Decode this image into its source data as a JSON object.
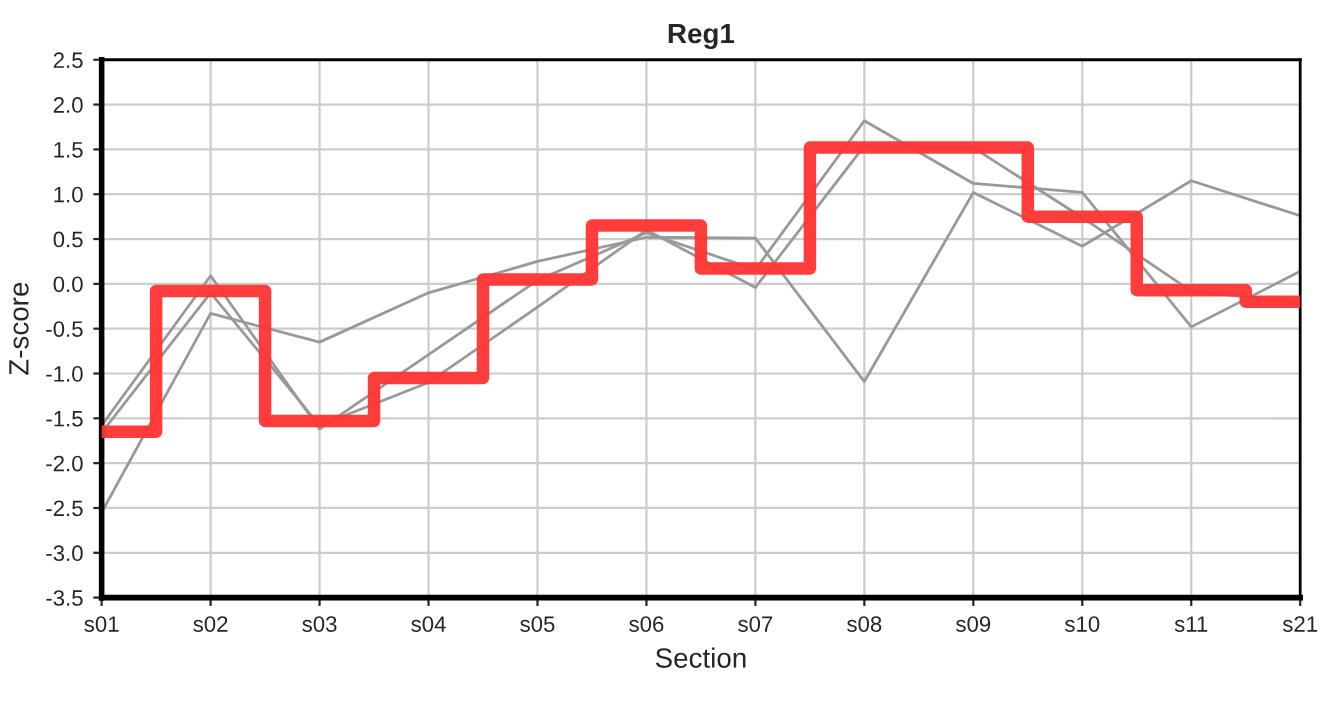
{
  "chart_data": {
    "type": "line",
    "title": "Reg1",
    "xlabel": "Section",
    "ylabel": "Z-score",
    "categories": [
      "s01",
      "s02",
      "s03",
      "s04",
      "s05",
      "s06",
      "s07",
      "s08",
      "s09",
      "s10",
      "s11",
      "s21"
    ],
    "series": [
      {
        "color": "#999999",
        "values": [
          -2.55,
          -0.33,
          -0.65,
          -0.1,
          0.25,
          0.52,
          0.51,
          -1.09,
          1.02,
          0.42,
          1.15,
          0.76
        ]
      },
      {
        "color": "#999999",
        "values": [
          -1.58,
          0.09,
          -1.62,
          -0.79,
          0.04,
          0.57,
          0.16,
          1.82,
          1.12,
          1.02,
          -0.48,
          0.14
        ]
      },
      {
        "color": "#999999",
        "values": [
          -1.66,
          -0.1,
          -1.58,
          -1.1,
          -0.26,
          0.6,
          -0.04,
          1.54,
          1.52,
          0.74,
          -0.08,
          -0.21
        ]
      },
      {
        "type": "step",
        "color": "#ff3333",
        "values": [
          -1.65,
          -0.08,
          -1.53,
          -1.05,
          0.05,
          0.65,
          0.17,
          1.52,
          1.52,
          0.75,
          -0.07,
          -0.2
        ]
      }
    ],
    "ylim": [
      -3.5,
      2.5
    ],
    "yticks": [
      {
        "value": -3.5,
        "label": "-3.5"
      },
      {
        "value": -3.0,
        "label": "-3.0"
      },
      {
        "value": -2.5,
        "label": "-2.5"
      },
      {
        "value": -2.0,
        "label": "-2.0"
      },
      {
        "value": -1.5,
        "label": "-1.5"
      },
      {
        "value": -1.0,
        "label": "-1.0"
      },
      {
        "value": -0.5,
        "label": "-0.5"
      },
      {
        "value": 0,
        "label": "0.0"
      },
      {
        "value": 0.5,
        "label": "0.5"
      },
      {
        "value": 1.0,
        "label": "1.0"
      },
      {
        "value": 1.5,
        "label": "1.5"
      },
      {
        "value": 2.0,
        "label": "2.0"
      },
      {
        "value": 2.5,
        "label": "2.5"
      }
    ],
    "grid": true
  }
}
